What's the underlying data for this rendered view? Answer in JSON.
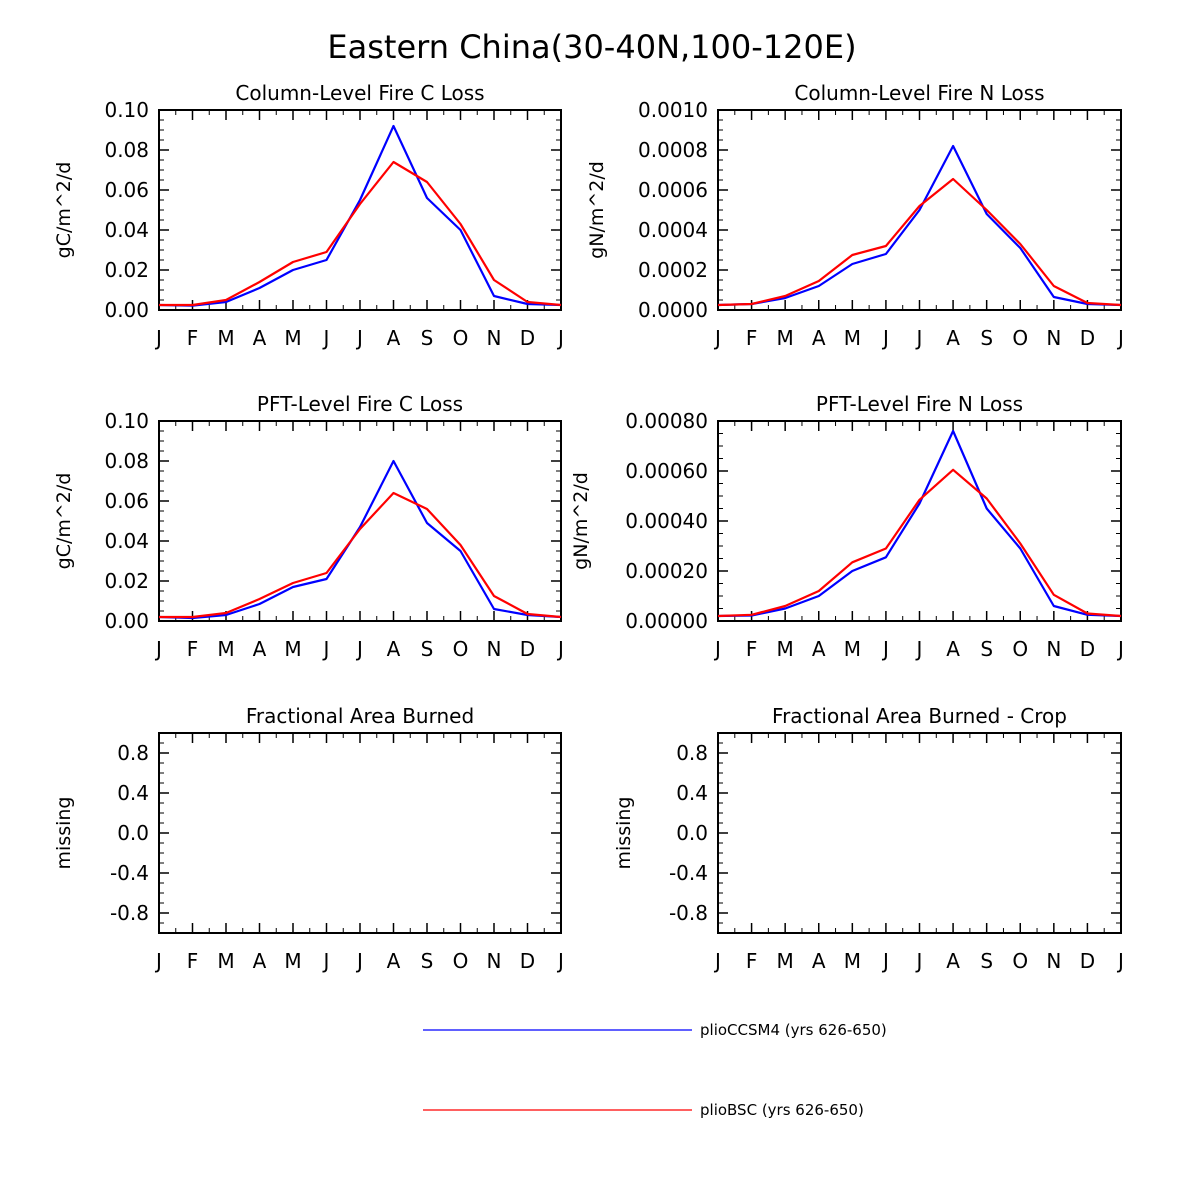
{
  "title": "Eastern China(30-40N,100-120E)",
  "colors": {
    "series1": "#0000ff",
    "series2": "#ff0000",
    "axis": "#000000"
  },
  "legend": [
    {
      "label": "plioCCSM4 (yrs 626-650)",
      "color": "#0000ff"
    },
    {
      "label": "plioBSC (yrs 626-650)",
      "color": "#ff0000"
    }
  ],
  "chart_data": [
    {
      "type": "line",
      "title": "Column-Level Fire C Loss",
      "ylabel": "gC/m^2/d",
      "categories": [
        "J",
        "F",
        "M",
        "A",
        "M",
        "J",
        "J",
        "A",
        "S",
        "O",
        "N",
        "D",
        "J"
      ],
      "ylim": [
        0,
        0.1
      ],
      "yticks": [
        "0.00",
        "0.02",
        "0.04",
        "0.06",
        "0.08",
        "0.10"
      ],
      "series": [
        {
          "name": "plioCCSM4 (yrs 626-650)",
          "values": [
            0.0025,
            0.0022,
            0.004,
            0.011,
            0.02,
            0.025,
            0.055,
            0.092,
            0.056,
            0.04,
            0.007,
            0.003,
            0.0025
          ]
        },
        {
          "name": "plioBSC (yrs 626-650)",
          "values": [
            0.0025,
            0.0025,
            0.005,
            0.014,
            0.024,
            0.029,
            0.053,
            0.074,
            0.064,
            0.043,
            0.015,
            0.004,
            0.0025
          ]
        }
      ]
    },
    {
      "type": "line",
      "title": "Column-Level Fire N Loss",
      "ylabel": "gN/m^2/d",
      "categories": [
        "J",
        "F",
        "M",
        "A",
        "M",
        "J",
        "J",
        "A",
        "S",
        "O",
        "N",
        "D",
        "J"
      ],
      "ylim": [
        0,
        0.001
      ],
      "yticks": [
        "0.0000",
        "0.0002",
        "0.0004",
        "0.0006",
        "0.0008",
        "0.0010"
      ],
      "series": [
        {
          "name": "plioCCSM4 (yrs 626-650)",
          "values": [
            2.5e-05,
            3e-05,
            6e-05,
            0.00012,
            0.00023,
            0.00028,
            0.0005,
            0.00082,
            0.00048,
            0.00031,
            6.5e-05,
            3e-05,
            2.5e-05
          ]
        },
        {
          "name": "plioBSC (yrs 626-650)",
          "values": [
            2.5e-05,
            3e-05,
            7e-05,
            0.000145,
            0.000275,
            0.00032,
            0.00052,
            0.000655,
            0.0005,
            0.00033,
            0.00012,
            3.5e-05,
            2.5e-05
          ]
        }
      ]
    },
    {
      "type": "line",
      "title": "PFT-Level Fire C Loss",
      "ylabel": "gC/m^2/d",
      "categories": [
        "J",
        "F",
        "M",
        "A",
        "M",
        "J",
        "J",
        "A",
        "S",
        "O",
        "N",
        "D",
        "J"
      ],
      "ylim": [
        0,
        0.1
      ],
      "yticks": [
        "0.00",
        "0.02",
        "0.04",
        "0.06",
        "0.08",
        "0.10"
      ],
      "series": [
        {
          "name": "plioCCSM4 (yrs 626-650)",
          "values": [
            0.002,
            0.0015,
            0.003,
            0.0085,
            0.017,
            0.021,
            0.047,
            0.08,
            0.049,
            0.035,
            0.006,
            0.003,
            0.002
          ]
        },
        {
          "name": "plioBSC (yrs 626-650)",
          "values": [
            0.002,
            0.002,
            0.004,
            0.011,
            0.019,
            0.024,
            0.046,
            0.064,
            0.056,
            0.038,
            0.0125,
            0.0035,
            0.002
          ]
        }
      ]
    },
    {
      "type": "line",
      "title": "PFT-Level Fire N Loss",
      "ylabel": "gN/m^2/d",
      "categories": [
        "J",
        "F",
        "M",
        "A",
        "M",
        "J",
        "J",
        "A",
        "S",
        "O",
        "N",
        "D",
        "J"
      ],
      "ylim": [
        0,
        0.0008
      ],
      "yticks": [
        "0.00000",
        "0.00020",
        "0.00040",
        "0.00060",
        "0.00080"
      ],
      "series": [
        {
          "name": "plioCCSM4 (yrs 626-650)",
          "values": [
            2e-05,
            2.2e-05,
            5e-05,
            0.0001,
            0.0002,
            0.000255,
            0.00047,
            0.00076,
            0.00045,
            0.00029,
            6e-05,
            2.5e-05,
            2e-05
          ]
        },
        {
          "name": "plioBSC (yrs 626-650)",
          "values": [
            2e-05,
            2.5e-05,
            6e-05,
            0.00012,
            0.000235,
            0.00029,
            0.000485,
            0.000605,
            0.00049,
            0.00031,
            0.000105,
            3e-05,
            2e-05
          ]
        }
      ]
    },
    {
      "type": "line",
      "title": "Fractional Area Burned",
      "ylabel": "missing",
      "categories": [
        "J",
        "F",
        "M",
        "A",
        "M",
        "J",
        "J",
        "A",
        "S",
        "O",
        "N",
        "D",
        "J"
      ],
      "ylim": [
        -1,
        1
      ],
      "yticks": [
        "-0.8",
        "-0.4",
        "0.0",
        "0.4",
        "0.8"
      ],
      "series": []
    },
    {
      "type": "line",
      "title": "Fractional Area Burned - Crop",
      "ylabel": "missing",
      "categories": [
        "J",
        "F",
        "M",
        "A",
        "M",
        "J",
        "J",
        "A",
        "S",
        "O",
        "N",
        "D",
        "J"
      ],
      "ylim": [
        -1,
        1
      ],
      "yticks": [
        "-0.8",
        "-0.4",
        "0.0",
        "0.4",
        "0.8"
      ],
      "series": []
    }
  ]
}
